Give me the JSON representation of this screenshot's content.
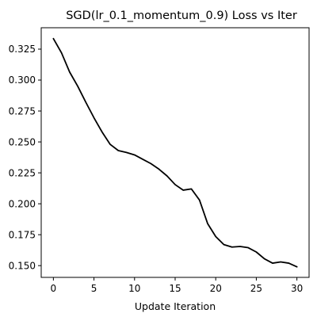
{
  "chart_data": {
    "type": "line",
    "title": "SGD(lr_0.1_momentum_0.9) Loss vs Iter",
    "xlabel": "Update Iteration",
    "ylabel": "",
    "xlim": [
      -1.5,
      31.5
    ],
    "ylim": [
      0.1405,
      0.3423
    ],
    "xticks": [
      0,
      5,
      10,
      15,
      20,
      25,
      30
    ],
    "yticks": [
      0.15,
      0.175,
      0.2,
      0.225,
      0.25,
      0.275,
      0.3,
      0.325
    ],
    "ytick_labels": [
      "0.150",
      "0.175",
      "0.200",
      "0.225",
      "0.250",
      "0.275",
      "0.300",
      "0.325"
    ],
    "grid": false,
    "series": [
      {
        "color": "#000000",
        "x": [
          0,
          1,
          2,
          3,
          4,
          5,
          6,
          7,
          8,
          9,
          10,
          11,
          12,
          13,
          14,
          15,
          16,
          17,
          18,
          19,
          20,
          21,
          22,
          23,
          24,
          25,
          26,
          27,
          28,
          29,
          30
        ],
        "y": [
          0.3335,
          0.322,
          0.3065,
          0.295,
          0.282,
          0.2695,
          0.258,
          0.248,
          0.243,
          0.2415,
          0.2395,
          0.236,
          0.2325,
          0.228,
          0.2225,
          0.2155,
          0.211,
          0.212,
          0.203,
          0.184,
          0.1735,
          0.167,
          0.165,
          0.1655,
          0.1645,
          0.161,
          0.1555,
          0.152,
          0.153,
          0.152,
          0.149
        ]
      }
    ]
  }
}
